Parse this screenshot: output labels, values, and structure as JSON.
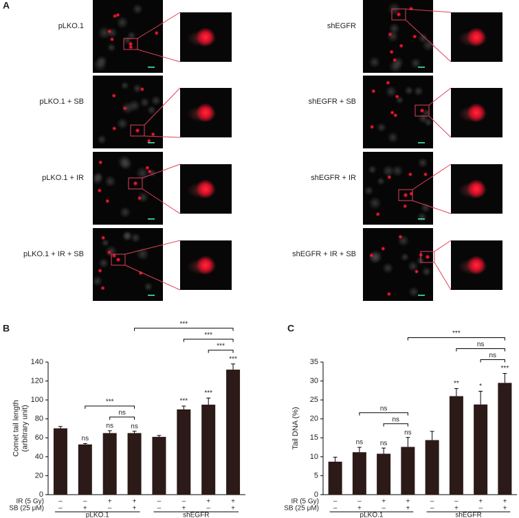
{
  "panel_a": {
    "label": "A",
    "left": [
      "pLKO.1",
      "pLKO.1 + SB",
      "pLKO.1 + IR",
      "pLKO.1 + IR + SB"
    ],
    "right": [
      "shEGFR",
      "shEGFR + SB",
      "shEGFR + IR",
      "shEGFR + IR + SB"
    ]
  },
  "chart_data": [
    {
      "type": "bar",
      "panel_label": "B",
      "ylabel": [
        "Comet tail length",
        "(arbitrary unit)"
      ],
      "values": [
        70,
        53,
        65,
        65,
        61,
        90,
        95,
        132
      ],
      "errors": [
        2,
        1,
        2.5,
        2,
        1.5,
        3.5,
        7,
        6
      ],
      "annotations": [
        null,
        "ns",
        "ns",
        "ns",
        null,
        "***",
        "***",
        "***"
      ],
      "color": "#2b1a17",
      "ylim": [
        0,
        140
      ],
      "yticks": [
        0,
        20,
        40,
        60,
        80,
        100,
        120,
        140
      ],
      "brackets": [
        {
          "from": 2,
          "to": 3,
          "label": "ns"
        },
        {
          "from": 1,
          "to": 3,
          "label": "***"
        },
        {
          "from": 6,
          "to": 7,
          "label": "***"
        },
        {
          "from": 5,
          "to": 7,
          "label": "***"
        },
        {
          "from": 3,
          "to": 7,
          "label": "***"
        }
      ],
      "rows": [
        {
          "label": "IR (5 Gy)",
          "marks": [
            "–",
            "–",
            "+",
            "+",
            "–",
            "–",
            "+",
            "+"
          ]
        },
        {
          "label": "SB (25 μM)",
          "marks": [
            "–",
            "+",
            "–",
            "+",
            "–",
            "+",
            "–",
            "+"
          ]
        }
      ],
      "groups": [
        {
          "label": "pLKO.1",
          "from": 0,
          "to": 3
        },
        {
          "label": "shEGFR",
          "from": 4,
          "to": 7
        }
      ]
    },
    {
      "type": "bar",
      "panel_label": "C",
      "ylabel": [
        "Tail DNA (%)"
      ],
      "values": [
        8.7,
        11.2,
        10.8,
        12.6,
        14.4,
        26,
        23.8,
        29.5
      ],
      "errors": [
        1.2,
        1.3,
        1.5,
        2.5,
        2.3,
        2,
        3.5,
        2.5
      ],
      "annotations": [
        null,
        "ns",
        "ns",
        "ns",
        null,
        "**",
        "*",
        "***"
      ],
      "color": "#2b1a17",
      "ylim": [
        0,
        35
      ],
      "yticks": [
        0,
        5,
        10,
        15,
        20,
        25,
        30,
        35
      ],
      "brackets": [
        {
          "from": 2,
          "to": 3,
          "label": "ns"
        },
        {
          "from": 1,
          "to": 3,
          "label": "ns"
        },
        {
          "from": 6,
          "to": 7,
          "label": "ns"
        },
        {
          "from": 5,
          "to": 7,
          "label": "ns"
        },
        {
          "from": 3,
          "to": 7,
          "label": "***"
        }
      ],
      "rows": [
        {
          "label": "IR (5 Gy)",
          "marks": [
            "–",
            "–",
            "+",
            "+",
            "–",
            "–",
            "+",
            "+"
          ]
        },
        {
          "label": "SB (25 μM)",
          "marks": [
            "–",
            "+",
            "–",
            "+",
            "–",
            "+",
            "–",
            "+"
          ]
        }
      ],
      "groups": [
        {
          "label": "pLKO.1",
          "from": 0,
          "to": 3
        },
        {
          "label": "shEGFR",
          "from": 4,
          "to": 7
        }
      ]
    }
  ]
}
